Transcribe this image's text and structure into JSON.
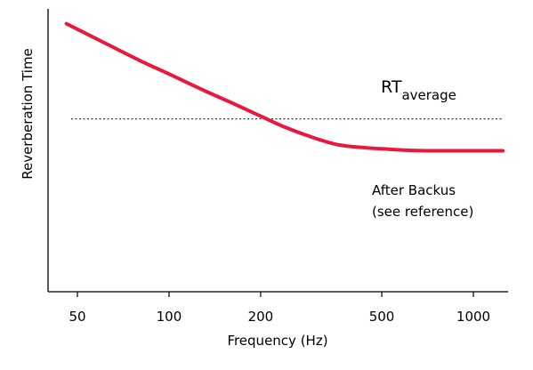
{
  "chart_data": {
    "type": "line",
    "xlabel": "Frequency (Hz)",
    "ylabel": "Reverberation Time",
    "x_scale": "log",
    "xlim": [
      40,
      1300
    ],
    "ylim": [
      0,
      1
    ],
    "x_ticks": [
      50,
      100,
      200,
      500,
      1000
    ],
    "x_tick_labels": [
      "50",
      "100",
      "200",
      "500",
      "1000"
    ],
    "y_ticks_shown": false,
    "grid": false,
    "series": [
      {
        "color": "#e8193c",
        "x": [
          46,
          60,
          80,
          100,
          130,
          160,
          200,
          240,
          300,
          360,
          430,
          500,
          600,
          700,
          800,
          1000,
          1250
        ],
        "y": [
          0.985,
          0.92,
          0.85,
          0.8,
          0.74,
          0.695,
          0.645,
          0.605,
          0.565,
          0.54,
          0.53,
          0.525,
          0.52,
          0.518,
          0.518,
          0.518,
          0.518
        ]
      }
    ],
    "reference_line": {
      "y": 0.635,
      "style": "dotted",
      "color": "#000000",
      "label_main": "RT",
      "label_sub": "average"
    },
    "annotation": {
      "lines": [
        "After Backus",
        "(see reference)"
      ]
    }
  }
}
